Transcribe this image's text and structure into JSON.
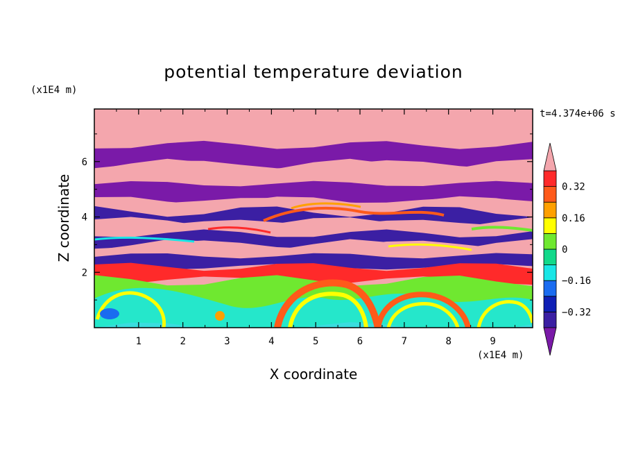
{
  "chart_data": {
    "type": "heatmap",
    "title": "potential temperature deviation",
    "xlabel": "X coordinate",
    "ylabel": "Z coordinate",
    "x_unit_label": "(x1E4 m)",
    "y_unit_label": "(x1E4 m)",
    "time_label": "t=4.374e+06 s",
    "xlim": [
      0,
      9.9
    ],
    "ylim": [
      0,
      7.9
    ],
    "x_ticks": [
      1,
      2,
      3,
      4,
      5,
      6,
      7,
      8,
      9
    ],
    "x_tick_labels": [
      "1",
      "2",
      "3",
      "4",
      "5",
      "6",
      "7",
      "8",
      "9"
    ],
    "y_ticks": [
      2,
      4,
      6
    ],
    "y_tick_labels": [
      "2",
      "4",
      "6"
    ],
    "colorbar": {
      "ticks": [
        0.32,
        0.16,
        0,
        -0.16,
        -0.32
      ],
      "tick_labels": [
        "0.32",
        "0.16",
        "0",
        "−0.16",
        "−0.32"
      ],
      "levels": [
        -0.4,
        -0.32,
        -0.24,
        -0.16,
        -0.08,
        0,
        0.08,
        0.16,
        0.24,
        0.32,
        0.4
      ],
      "colors": [
        "#7a1aa8",
        "#3b1fa3",
        "#0f1fb5",
        "#1a6cf0",
        "#19e6e6",
        "#12d98a",
        "#6fe830",
        "#ffff00",
        "#ffa000",
        "#ff5a1a",
        "#ff2a2a",
        "#f4a6ad"
      ]
    },
    "bands": [
      {
        "z": [
          6.6,
          7.9
        ],
        "value": 0.45,
        "note_color": "pink"
      },
      {
        "z": [
          5.9,
          6.6
        ],
        "value": -0.45,
        "note_color": "purple"
      },
      {
        "z": [
          5.2,
          5.9
        ],
        "value": 0.45,
        "note_color": "pink"
      },
      {
        "z": [
          4.6,
          5.2
        ],
        "value": -0.45,
        "note_color": "purple"
      },
      {
        "z": [
          4.2,
          4.6
        ],
        "value": 0.45,
        "note_color": "pink"
      },
      {
        "z": [
          3.8,
          4.2
        ],
        "value": -0.35,
        "note_color": "blue"
      },
      {
        "z": [
          3.4,
          3.8
        ],
        "value": 0.45,
        "note_color": "pink"
      },
      {
        "z": [
          3.0,
          3.4
        ],
        "value": -0.4,
        "note_color": "navy"
      },
      {
        "z": [
          2.6,
          3.0
        ],
        "value": 0.4,
        "note_color": "pink"
      },
      {
        "z": [
          2.2,
          2.6
        ],
        "value": -0.4,
        "note_color": "purple"
      },
      {
        "z": [
          1.7,
          2.2
        ],
        "value": 0.35,
        "note_color": "pink"
      },
      {
        "z": [
          0.0,
          1.7
        ],
        "value": 0.02,
        "note_color": "green"
      }
    ]
  }
}
